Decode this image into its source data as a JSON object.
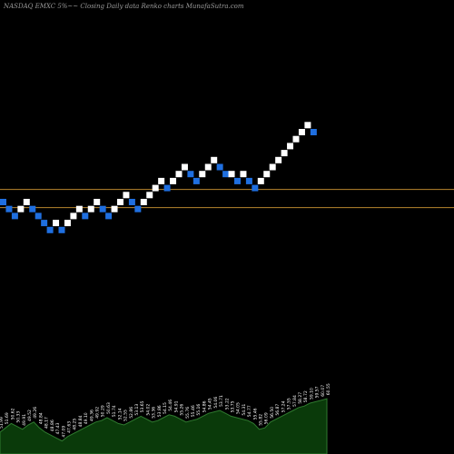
{
  "header": {
    "title": "NASDAQ EMXC 5%~~ Closing Daily data Renko charts MunafaSutra.com"
  },
  "chart_data": {
    "type": "renko",
    "brick_pct": 5,
    "colors": {
      "background": "#000000",
      "up_brick": "#ffffff",
      "down_brick": "#1f6fe0",
      "reference_line": "#b8862e",
      "volume_fill": "#0a3a0a",
      "volume_line": "#2f7a2f",
      "volume_label": "#ffffff"
    },
    "bricks": [
      {
        "level": 0,
        "dir": "down"
      },
      {
        "level": -1,
        "dir": "down"
      },
      {
        "level": -2,
        "dir": "down"
      },
      {
        "level": -1,
        "dir": "up"
      },
      {
        "level": 0,
        "dir": "up"
      },
      {
        "level": -1,
        "dir": "down"
      },
      {
        "level": -2,
        "dir": "down"
      },
      {
        "level": -3,
        "dir": "down"
      },
      {
        "level": -4,
        "dir": "down"
      },
      {
        "level": -3,
        "dir": "up"
      },
      {
        "level": -4,
        "dir": "down"
      },
      {
        "level": -3,
        "dir": "up"
      },
      {
        "level": -2,
        "dir": "up"
      },
      {
        "level": -1,
        "dir": "up"
      },
      {
        "level": -2,
        "dir": "down"
      },
      {
        "level": -1,
        "dir": "up"
      },
      {
        "level": 0,
        "dir": "up"
      },
      {
        "level": -1,
        "dir": "down"
      },
      {
        "level": -2,
        "dir": "down"
      },
      {
        "level": -1,
        "dir": "up"
      },
      {
        "level": 0,
        "dir": "up"
      },
      {
        "level": 1,
        "dir": "up"
      },
      {
        "level": 0,
        "dir": "down"
      },
      {
        "level": -1,
        "dir": "down"
      },
      {
        "level": 0,
        "dir": "up"
      },
      {
        "level": 1,
        "dir": "up"
      },
      {
        "level": 2,
        "dir": "up"
      },
      {
        "level": 3,
        "dir": "up"
      },
      {
        "level": 2,
        "dir": "down"
      },
      {
        "level": 3,
        "dir": "up"
      },
      {
        "level": 4,
        "dir": "up"
      },
      {
        "level": 5,
        "dir": "up"
      },
      {
        "level": 4,
        "dir": "down"
      },
      {
        "level": 3,
        "dir": "down"
      },
      {
        "level": 4,
        "dir": "up"
      },
      {
        "level": 5,
        "dir": "up"
      },
      {
        "level": 6,
        "dir": "up"
      },
      {
        "level": 5,
        "dir": "down"
      },
      {
        "level": 4,
        "dir": "down"
      },
      {
        "level": 4,
        "dir": "up"
      },
      {
        "level": 3,
        "dir": "down"
      },
      {
        "level": 4,
        "dir": "up"
      },
      {
        "level": 3,
        "dir": "down"
      },
      {
        "level": 2,
        "dir": "down"
      },
      {
        "level": 3,
        "dir": "up"
      },
      {
        "level": 4,
        "dir": "up"
      },
      {
        "level": 5,
        "dir": "up"
      },
      {
        "level": 6,
        "dir": "up"
      },
      {
        "level": 7,
        "dir": "up"
      },
      {
        "level": 8,
        "dir": "up"
      },
      {
        "level": 9,
        "dir": "up"
      },
      {
        "level": 10,
        "dir": "up"
      },
      {
        "level": 11,
        "dir": "up"
      },
      {
        "level": 10,
        "dir": "down"
      }
    ],
    "reference_levels": [
      1.8,
      -0.8
    ],
    "volume": {
      "values": [
        30,
        36,
        42,
        38,
        34,
        40,
        44,
        36,
        30,
        26,
        22,
        18,
        24,
        28,
        32,
        36,
        40,
        44,
        46,
        50,
        46,
        42,
        40,
        44,
        48,
        52,
        48,
        44,
        46,
        50,
        54,
        52,
        48,
        44,
        46,
        48,
        52,
        56,
        58,
        60,
        56,
        52,
        50,
        48,
        46,
        42,
        34,
        36,
        44,
        48,
        52,
        56,
        60,
        64,
        66,
        70,
        72,
        74,
        76
      ],
      "labels": [
        "51.99",
        "51.69",
        "50.62",
        "50.33",
        "49.91",
        "49.52",
        "49.26",
        "48.84",
        "48.17",
        "48.86",
        "47.43",
        "47.09",
        "47.63",
        "48.25",
        "48.84",
        "49.10",
        "49.36",
        "49.92",
        "50.29",
        "50.63",
        "51.74",
        "52.14",
        "52.55",
        "52.86",
        "53.13",
        "53.65",
        "54.02",
        "53.36",
        "53.86",
        "54.15",
        "54.46",
        "54.91",
        "55.26",
        "55.76",
        "55.46",
        "55.16",
        "54.86",
        "54.45",
        "54.06",
        "53.71",
        "53.22",
        "53.75",
        "54.05",
        "54.31",
        "54.77",
        "55.46",
        "55.82",
        "56.09",
        "56.50",
        "56.87",
        "57.24",
        "57.55",
        "57.84",
        "58.27",
        "58.72",
        "59.10",
        "59.57",
        "60.07",
        "60.55"
      ]
    }
  }
}
